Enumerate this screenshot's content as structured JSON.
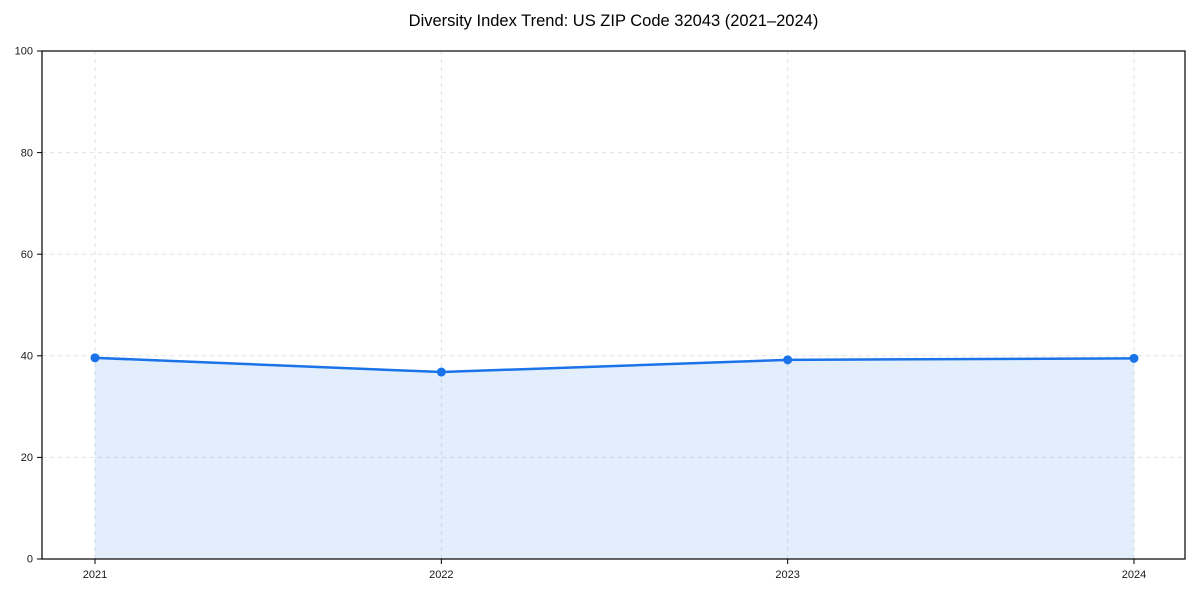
{
  "chart_data": {
    "type": "area",
    "title": "Diversity Index Trend: US ZIP Code 32043 (2021–2024)",
    "categories": [
      "2021",
      "2022",
      "2023",
      "2024"
    ],
    "series": [
      {
        "name": "Diversity Index",
        "values": [
          39.6,
          36.8,
          39.2,
          39.5
        ]
      }
    ],
    "xlabel": "",
    "ylabel": "",
    "ylim": [
      0,
      100
    ],
    "yticks": [
      0,
      20,
      40,
      60,
      80,
      100
    ],
    "grid": "dashed-both-axes",
    "legend_position": "none",
    "colors": {
      "line": "#1a73e8",
      "marker": "#1a73e8",
      "fill": "rgba(26,115,232,0.12)",
      "grid": "#e2e2e2",
      "spine": "#000000",
      "tick_label": "#1a1a1a",
      "title": "#000000",
      "background": "#ffffff"
    }
  }
}
